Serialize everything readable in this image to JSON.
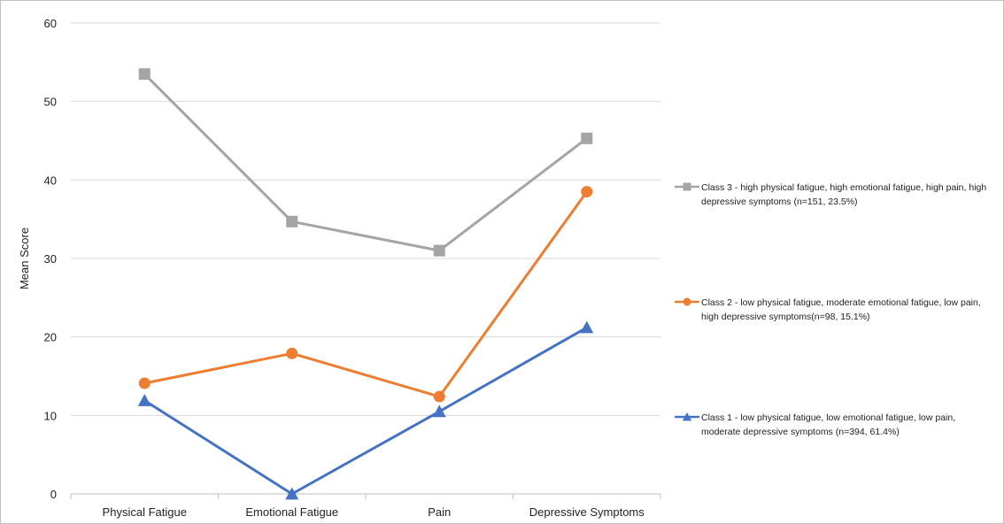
{
  "chart_data": {
    "type": "line",
    "categories": [
      "Physical Fatigue",
      "Emotional Fatigue",
      "Pain",
      "Depressive Symptoms"
    ],
    "ylabel": "Mean Score",
    "xlabel": "",
    "ylim": [
      0,
      60
    ],
    "yticks": [
      0,
      10,
      20,
      30,
      40,
      50,
      60
    ],
    "grid": true,
    "legend_position": "right",
    "series": [
      {
        "name": "Class 3 - high physical fatigue, high emotional fatigue, high pain, high depressive symptoms (n=151, 23.5%)",
        "legend_lines": [
          "Class 3 - high physical fatigue, high emotional fatigue, high pain, high",
          "depressive symptoms (n=151, 23.5%)"
        ],
        "values": [
          53.5,
          34.7,
          31.0,
          45.3
        ],
        "color": "#a5a5a5",
        "marker": "square"
      },
      {
        "name": "Class 2 - low physical fatigue, moderate emotional fatigue, low pain, high depressive symptoms(n=98, 15.1%)",
        "legend_lines": [
          "Class 2 - low physical fatigue, moderate emotional fatigue, low pain,",
          "high depressive symptoms(n=98, 15.1%)"
        ],
        "values": [
          14.1,
          17.9,
          12.4,
          38.5
        ],
        "color": "#ed7d31",
        "marker": "circle"
      },
      {
        "name": "Class 1 - low physical fatigue, low emotional fatigue, low pain, moderate depressive symptoms (n=394, 61.4%)",
        "legend_lines": [
          "Class 1 - low physical fatigue, low emotional fatigue, low pain,",
          "moderate depressive symptoms (n=394, 61.4%)"
        ],
        "values": [
          11.9,
          0.0,
          10.5,
          21.2
        ],
        "color": "#4472c4",
        "marker": "triangle"
      }
    ]
  }
}
